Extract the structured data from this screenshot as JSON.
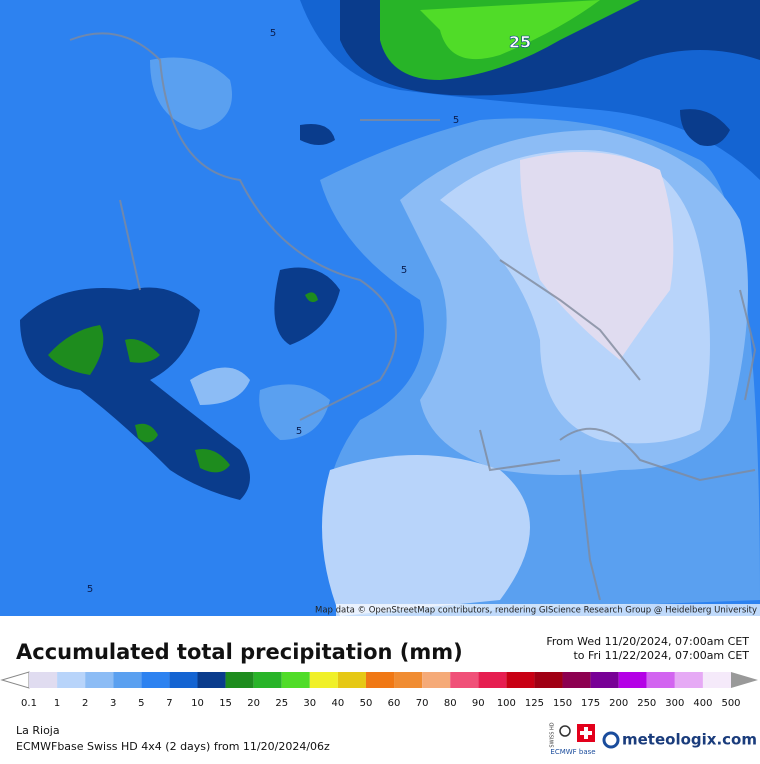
{
  "map": {
    "contour_labels": [
      "5",
      "5",
      "5",
      "5",
      "5",
      "25"
    ],
    "attribution": "Map data © OpenStreetMap contributors, rendering GIScience Research Group @ Heidelberg University"
  },
  "header": {
    "title": "Accumulated total precipitation (mm)",
    "period_from": "From Wed 11/20/2024, 07:00am CET",
    "period_to": "to Fri 11/22/2024, 07:00am CET"
  },
  "legend": {
    "items": [
      {
        "label": 0.1,
        "color": "#e0dcf0"
      },
      {
        "label": 1,
        "color": "#b8d4fa"
      },
      {
        "label": 2,
        "color": "#8cbcf5"
      },
      {
        "label": 3,
        "color": "#5aa0f0"
      },
      {
        "label": 5,
        "color": "#2d82f0"
      },
      {
        "label": 7,
        "color": "#1464d2"
      },
      {
        "label": 10,
        "color": "#0a3c8c"
      },
      {
        "label": 15,
        "color": "#1e8c1e"
      },
      {
        "label": 20,
        "color": "#28b428"
      },
      {
        "label": 25,
        "color": "#50dc28"
      },
      {
        "label": 30,
        "color": "#f0f028"
      },
      {
        "label": 40,
        "color": "#e6c814"
      },
      {
        "label": 50,
        "color": "#f07814"
      },
      {
        "label": 60,
        "color": "#f08c32"
      },
      {
        "label": 70,
        "color": "#f5aa78"
      },
      {
        "label": 80,
        "color": "#f05078"
      },
      {
        "label": 90,
        "color": "#e61e50"
      },
      {
        "label": 100,
        "color": "#c80014"
      },
      {
        "label": 125,
        "color": "#a00014"
      },
      {
        "label": 150,
        "color": "#8c0050"
      },
      {
        "label": 175,
        "color": "#780096"
      },
      {
        "label": 200,
        "color": "#b400e6"
      },
      {
        "label": 250,
        "color": "#d264f0"
      },
      {
        "label": 300,
        "color": "#e6aaf5"
      },
      {
        "label": 400,
        "color": "#f5eafa"
      },
      {
        "label": 500,
        "color": "#d2d2d2"
      }
    ]
  },
  "footer": {
    "region": "La Rioja",
    "model": "ECMWFbase Swiss HD 4x4 (2 days) from  11/20/2024/06z"
  },
  "logo": {
    "badge_top": "SWISS HD",
    "badge_bottom": "ECMWF base",
    "brand": "meteologix.com"
  }
}
